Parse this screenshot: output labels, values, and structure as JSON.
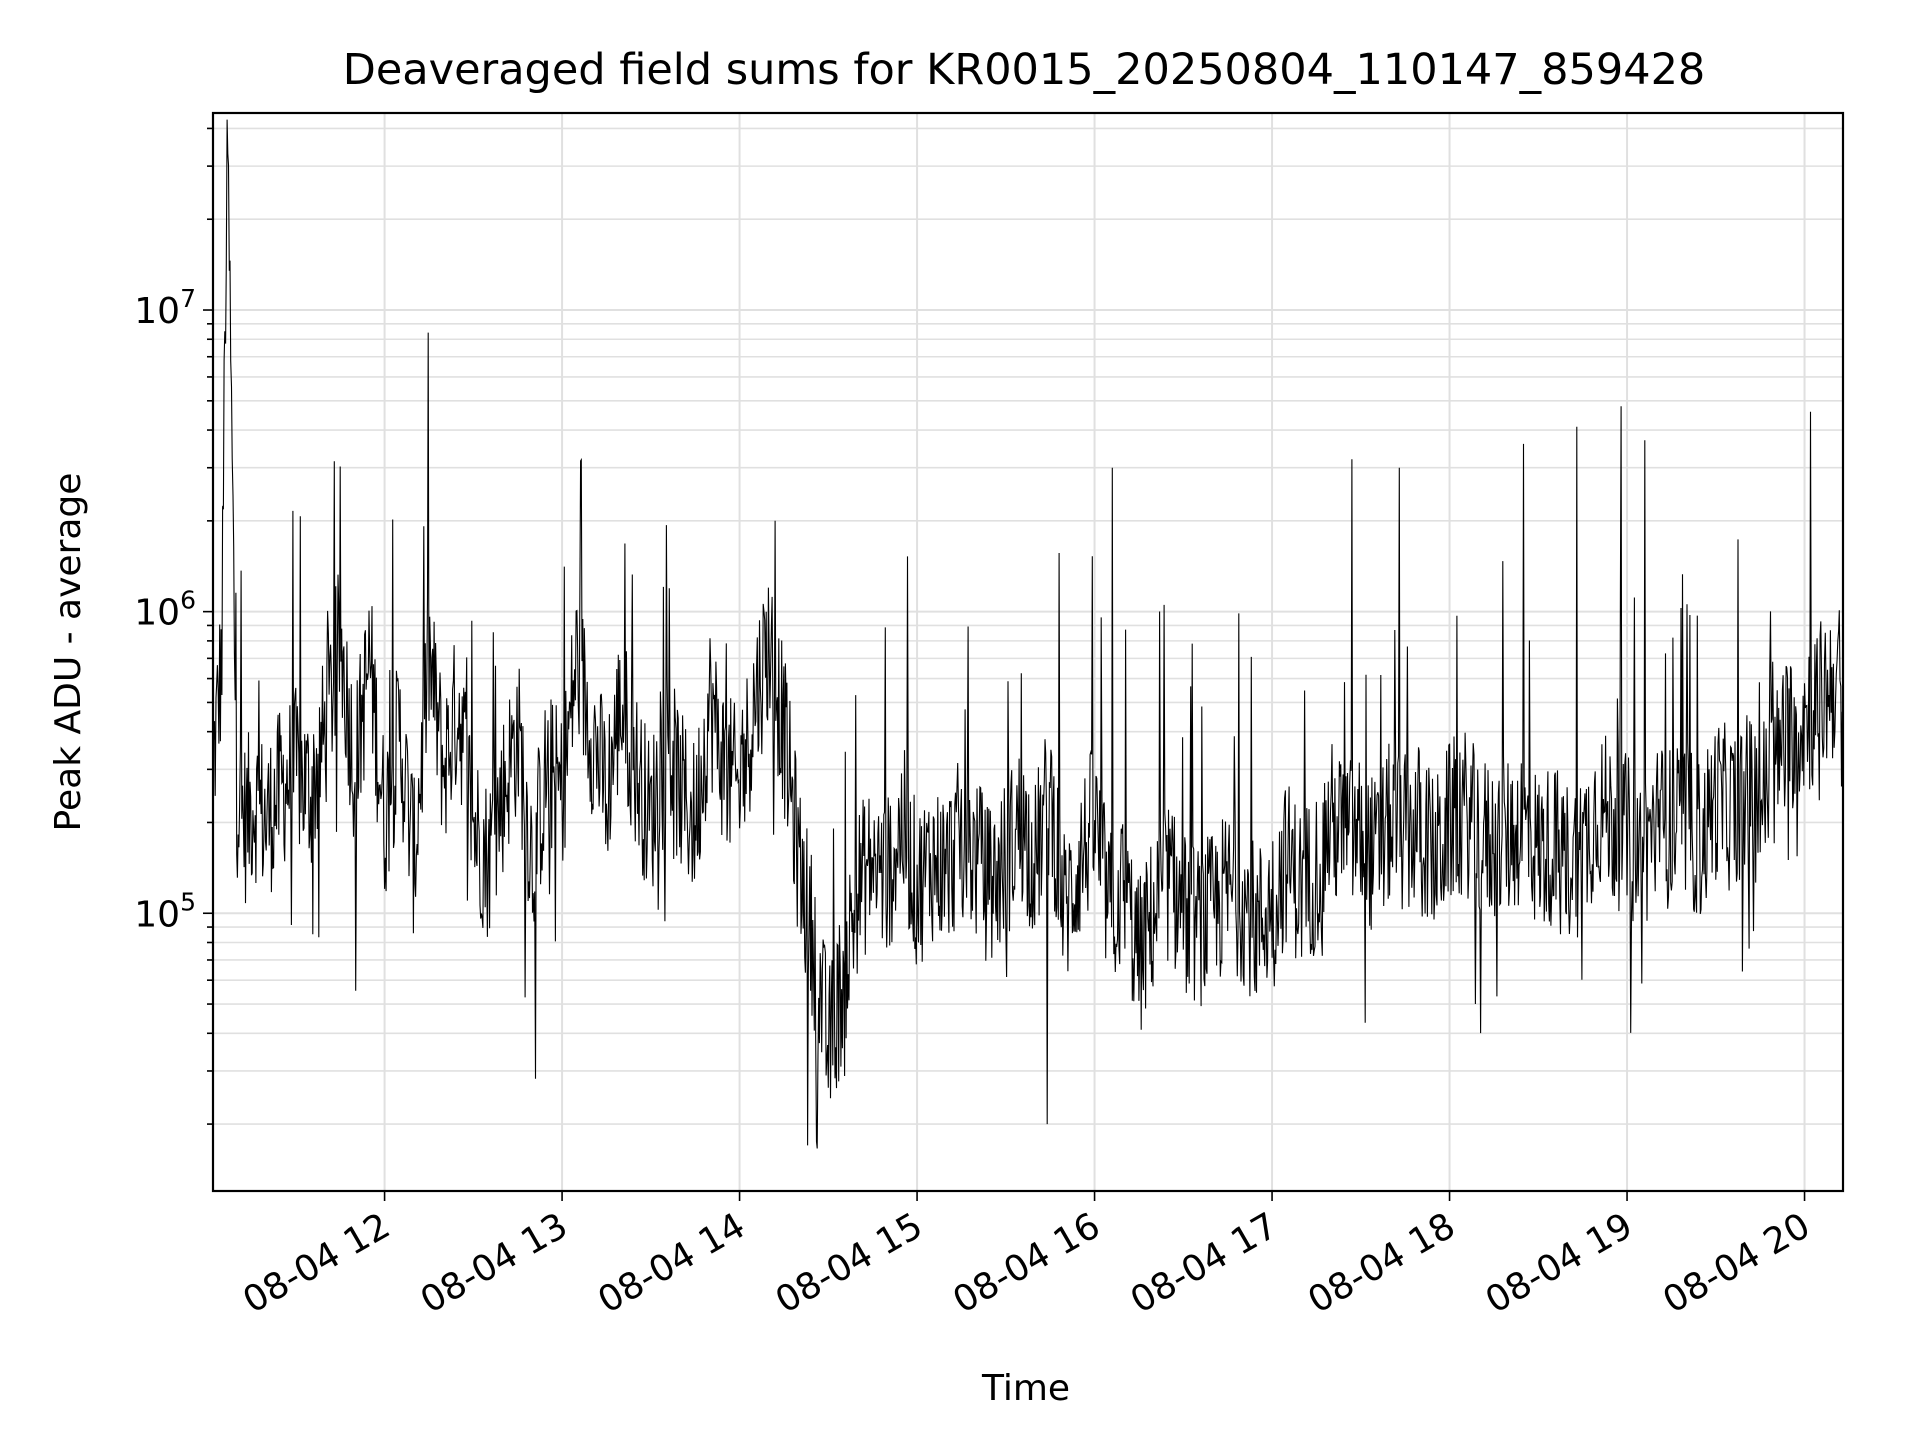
{
  "chart_data": {
    "type": "line",
    "title": "Deaveraged field sums for KR0015_20250804_110147_859428",
    "xlabel": "Time",
    "ylabel": "Peak ADU - average",
    "yscale": "log",
    "grid": true,
    "line_color": "#000000",
    "grid_color": "#e0e0e0",
    "xlim": [
      "2025-08-04 11:02",
      "2025-08-04 20:13"
    ],
    "ylim": [
      12000,
      45000000
    ],
    "x_ticks": [
      {
        "t": "2025-08-04 12:00",
        "label": "08-04 12"
      },
      {
        "t": "2025-08-04 13:00",
        "label": "08-04 13"
      },
      {
        "t": "2025-08-04 14:00",
        "label": "08-04 14"
      },
      {
        "t": "2025-08-04 15:00",
        "label": "08-04 15"
      },
      {
        "t": "2025-08-04 16:00",
        "label": "08-04 16"
      },
      {
        "t": "2025-08-04 17:00",
        "label": "08-04 17"
      },
      {
        "t": "2025-08-04 18:00",
        "label": "08-04 18"
      },
      {
        "t": "2025-08-04 19:00",
        "label": "08-04 19"
      },
      {
        "t": "2025-08-04 20:00",
        "label": "08-04 20"
      }
    ],
    "y_ticks": [
      {
        "value": 100000,
        "base": "10",
        "exp": "5"
      },
      {
        "value": 1000000,
        "base": "10",
        "exp": "6"
      },
      {
        "value": 10000000,
        "base": "10",
        "exp": "7"
      }
    ],
    "series": [
      {
        "x": [
          "2025-08-04 11:02",
          "2025-08-04 11:05",
          "2025-08-04 11:06",
          "2025-08-04 11:07",
          "2025-08-04 11:10",
          "2025-08-04 11:13",
          "2025-08-04 11:16",
          "2025-08-04 11:20",
          "2025-08-04 11:25",
          "2025-08-04 11:30",
          "2025-08-04 11:35",
          "2025-08-04 11:40",
          "2025-08-04 11:45",
          "2025-08-04 11:50",
          "2025-08-04 11:55",
          "2025-08-04 12:00",
          "2025-08-04 12:05",
          "2025-08-04 12:10",
          "2025-08-04 12:15",
          "2025-08-04 12:20",
          "2025-08-04 12:25",
          "2025-08-04 12:30",
          "2025-08-04 12:35",
          "2025-08-04 12:40",
          "2025-08-04 12:45",
          "2025-08-04 12:50",
          "2025-08-04 12:55",
          "2025-08-04 13:00",
          "2025-08-04 13:05",
          "2025-08-04 13:10",
          "2025-08-04 13:15",
          "2025-08-04 13:20",
          "2025-08-04 13:25",
          "2025-08-04 13:30",
          "2025-08-04 13:35",
          "2025-08-04 13:40",
          "2025-08-04 13:45",
          "2025-08-04 13:50",
          "2025-08-04 13:55",
          "2025-08-04 14:00",
          "2025-08-04 14:05",
          "2025-08-04 14:10",
          "2025-08-04 14:15",
          "2025-08-04 14:20",
          "2025-08-04 14:25",
          "2025-08-04 14:30",
          "2025-08-04 14:35",
          "2025-08-04 14:40",
          "2025-08-04 14:45",
          "2025-08-04 14:50",
          "2025-08-04 14:55",
          "2025-08-04 15:00",
          "2025-08-04 15:05",
          "2025-08-04 15:10",
          "2025-08-04 15:15",
          "2025-08-04 15:20",
          "2025-08-04 15:25",
          "2025-08-04 15:30",
          "2025-08-04 15:35",
          "2025-08-04 15:40",
          "2025-08-04 15:45",
          "2025-08-04 15:50",
          "2025-08-04 15:55",
          "2025-08-04 16:00",
          "2025-08-04 16:05",
          "2025-08-04 16:10",
          "2025-08-04 16:15",
          "2025-08-04 16:20",
          "2025-08-04 16:25",
          "2025-08-04 16:30",
          "2025-08-04 16:35",
          "2025-08-04 16:40",
          "2025-08-04 16:45",
          "2025-08-04 16:50",
          "2025-08-04 16:55",
          "2025-08-04 17:00",
          "2025-08-04 17:05",
          "2025-08-04 17:10",
          "2025-08-04 17:15",
          "2025-08-04 17:20",
          "2025-08-04 17:25",
          "2025-08-04 17:30",
          "2025-08-04 17:35",
          "2025-08-04 17:40",
          "2025-08-04 17:45",
          "2025-08-04 17:50",
          "2025-08-04 17:55",
          "2025-08-04 18:00",
          "2025-08-04 18:05",
          "2025-08-04 18:10",
          "2025-08-04 18:15",
          "2025-08-04 18:20",
          "2025-08-04 18:25",
          "2025-08-04 18:30",
          "2025-08-04 18:35",
          "2025-08-04 18:40",
          "2025-08-04 18:45",
          "2025-08-04 18:50",
          "2025-08-04 18:55",
          "2025-08-04 19:00",
          "2025-08-04 19:05",
          "2025-08-04 19:10",
          "2025-08-04 19:15",
          "2025-08-04 19:20",
          "2025-08-04 19:25",
          "2025-08-04 19:30",
          "2025-08-04 19:35",
          "2025-08-04 19:40",
          "2025-08-04 19:45",
          "2025-08-04 19:50",
          "2025-08-04 19:55",
          "2025-08-04 20:00",
          "2025-08-04 20:05",
          "2025-08-04 20:10",
          "2025-08-04 20:13"
        ],
        "y": [
          300000,
          700000,
          8500000,
          33000000,
          250000,
          200000,
          240000,
          200000,
          260000,
          300000,
          250000,
          400000,
          800000,
          300000,
          700000,
          200000,
          400000,
          150000,
          700000,
          300000,
          500000,
          200000,
          150000,
          250000,
          400000,
          150000,
          300000,
          250000,
          700000,
          400000,
          250000,
          500000,
          300000,
          200000,
          400000,
          250000,
          200000,
          500000,
          300000,
          250000,
          500000,
          800000,
          400000,
          150000,
          80000,
          35000,
          60000,
          120000,
          150000,
          130000,
          200000,
          120000,
          150000,
          140000,
          180000,
          150000,
          120000,
          150000,
          200000,
          150000,
          250000,
          100000,
          150000,
          200000,
          100000,
          120000,
          70000,
          100000,
          130000,
          100000,
          90000,
          100000,
          120000,
          110000,
          90000,
          110000,
          150000,
          120000,
          140000,
          200000,
          180000,
          180000,
          150000,
          200000,
          180000,
          200000,
          150000,
          200000,
          220000,
          180000,
          170000,
          180000,
          200000,
          160000,
          170000,
          150000,
          160000,
          230000,
          200000,
          180000,
          160000,
          200000,
          190000,
          200000,
          170000,
          240000,
          220000,
          250000,
          230000,
          300000,
          400000,
          450000,
          500000,
          600000,
          550000
        ],
        "spikes": [
          {
            "x": "2025-08-04 11:06",
            "y": 8500000
          },
          {
            "x": "2025-08-04 11:07",
            "y": 33000000
          },
          {
            "x": "2025-08-04 14:12",
            "y": 2000000
          },
          {
            "x": "2025-08-04 16:06",
            "y": 3000000
          },
          {
            "x": "2025-08-04 17:27",
            "y": 3200000
          },
          {
            "x": "2025-08-04 17:43",
            "y": 3000000
          },
          {
            "x": "2025-08-04 18:25",
            "y": 3600000
          },
          {
            "x": "2025-08-04 18:43",
            "y": 4100000
          },
          {
            "x": "2025-08-04 18:58",
            "y": 4800000
          },
          {
            "x": "2025-08-04 19:06",
            "y": 3700000
          },
          {
            "x": "2025-08-04 20:02",
            "y": 4600000
          }
        ],
        "dips": [
          {
            "x": "2025-08-04 14:23",
            "y": 17000
          },
          {
            "x": "2025-08-04 14:26",
            "y": 17500
          },
          {
            "x": "2025-08-04 15:44",
            "y": 20000
          }
        ]
      }
    ]
  }
}
